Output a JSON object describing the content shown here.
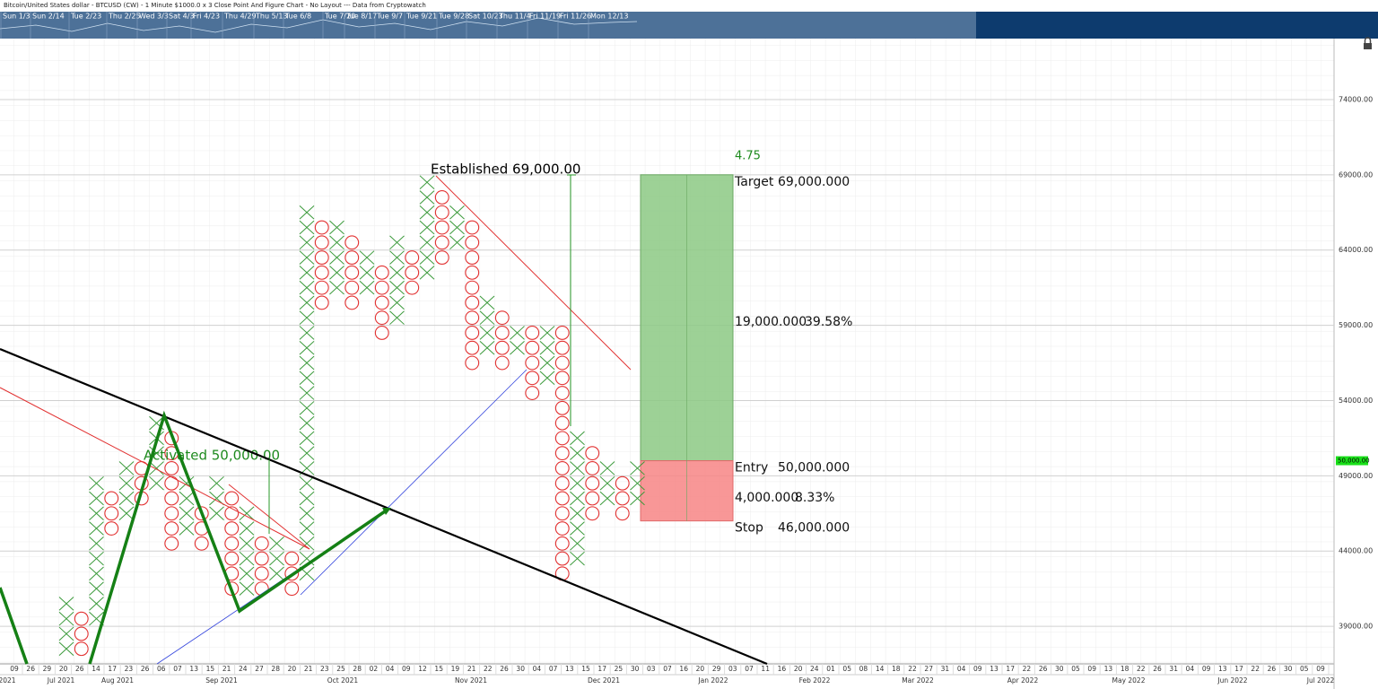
{
  "chart_data": {
    "type": "pnf",
    "title": "Bitcoin/United States dollar - BTCUSD (CW) - 1 Minute $1000.0 x 3 Close Point And Figure Chart - No Layout --- Data from Cryptowatch",
    "box_size": 1000,
    "ylim": [
      36500,
      78050
    ],
    "yticks": [
      {
        "value": 39000,
        "label": "39000.00"
      },
      {
        "value": 44000,
        "label": "44000.00"
      },
      {
        "value": 49000,
        "label": "49000.00"
      },
      {
        "value": 54000,
        "label": "54000.00"
      },
      {
        "value": 59000,
        "label": "59000.00"
      },
      {
        "value": 64000,
        "label": "64000.00"
      },
      {
        "value": 69000,
        "label": "69000.00"
      },
      {
        "value": 74000,
        "label": "74000.00"
      }
    ],
    "grid": true,
    "x_color": "#3a9a3a",
    "o_color": "#e23232",
    "columns": [
      {
        "kind": "X",
        "low": 37000,
        "high": 41000
      },
      {
        "kind": "O",
        "low": 37000,
        "high": 40000
      },
      {
        "kind": "X",
        "low": 39000,
        "high": 49000
      },
      {
        "kind": "O",
        "low": 45000,
        "high": 48000
      },
      {
        "kind": "X",
        "low": 46000,
        "high": 50000
      },
      {
        "kind": "O",
        "low": 47000,
        "high": 50000
      },
      {
        "kind": "X",
        "low": 48000,
        "high": 53000
      },
      {
        "kind": "O",
        "low": 44000,
        "high": 52000
      },
      {
        "kind": "X",
        "low": 45000,
        "high": 49000
      },
      {
        "kind": "O",
        "low": 44000,
        "high": 47000
      },
      {
        "kind": "X",
        "low": 46000,
        "high": 49000
      },
      {
        "kind": "O",
        "low": 41000,
        "high": 48000
      },
      {
        "kind": "X",
        "low": 41000,
        "high": 47000
      },
      {
        "kind": "O",
        "low": 41000,
        "high": 45000
      },
      {
        "kind": "X",
        "low": 42000,
        "high": 45000
      },
      {
        "kind": "O",
        "low": 41000,
        "high": 44000
      },
      {
        "kind": "X",
        "low": 42000,
        "high": 67000
      },
      {
        "kind": "O",
        "low": 60000,
        "high": 66000
      },
      {
        "kind": "X",
        "low": 61000,
        "high": 66000
      },
      {
        "kind": "O",
        "low": 60000,
        "high": 65000
      },
      {
        "kind": "X",
        "low": 61000,
        "high": 64000
      },
      {
        "kind": "O",
        "low": 58000,
        "high": 63000
      },
      {
        "kind": "X",
        "low": 59000,
        "high": 65000
      },
      {
        "kind": "O",
        "low": 61000,
        "high": 64000
      },
      {
        "kind": "X",
        "low": 62000,
        "high": 69000
      },
      {
        "kind": "O",
        "low": 63000,
        "high": 68000
      },
      {
        "kind": "X",
        "low": 64000,
        "high": 67000
      },
      {
        "kind": "O",
        "low": 56000,
        "high": 66000
      },
      {
        "kind": "X",
        "low": 57000,
        "high": 61000
      },
      {
        "kind": "O",
        "low": 56000,
        "high": 60000
      },
      {
        "kind": "X",
        "low": 57000,
        "high": 59000
      },
      {
        "kind": "O",
        "low": 54000,
        "high": 59000
      },
      {
        "kind": "X",
        "low": 55000,
        "high": 59000
      },
      {
        "kind": "O",
        "low": 42000,
        "high": 59000
      },
      {
        "kind": "X",
        "low": 43000,
        "high": 52000
      },
      {
        "kind": "O",
        "low": 46000,
        "high": 51000
      },
      {
        "kind": "X",
        "low": 47000,
        "high": 50000
      },
      {
        "kind": "O",
        "low": 46000,
        "high": 49000
      },
      {
        "kind": "X",
        "low": 47000,
        "high": 50000
      }
    ],
    "navigator_dates": [
      "Sun 1/3",
      "Sun 2/14",
      "Tue 2/23",
      "Thu 2/25",
      "Wed 3/3",
      "Sat 4/3",
      "Fri 4/23",
      "Thu 4/29",
      "Thu 5/13",
      "Tue 6/8",
      "Tue 7/20",
      "Tue 8/17",
      "Tue 9/7",
      "Tue 9/21",
      "Tue 9/28",
      "Sat 10/23",
      "Thu 11/4",
      "Fri 11/19",
      "Fri 11/26",
      "Mon 12/13"
    ],
    "x_day_labels": [
      "09",
      "26",
      "29",
      "20",
      "26",
      "14",
      "17",
      "23",
      "26",
      "06",
      "07",
      "13",
      "15",
      "21",
      "24",
      "27",
      "28",
      "20",
      "21",
      "23",
      "25",
      "28",
      "02",
      "04",
      "09",
      "12",
      "15",
      "19",
      "21",
      "22",
      "26",
      "30",
      "04",
      "07",
      "13",
      "15",
      "17",
      "25",
      "30",
      "03",
      "07",
      "16",
      "20",
      "29",
      "03",
      "07",
      "11",
      "16",
      "20",
      "24",
      "01",
      "05",
      "08",
      "14",
      "18",
      "22",
      "27",
      "31",
      "04",
      "09",
      "13",
      "17",
      "22",
      "26",
      "30",
      "05",
      "09",
      "13",
      "18",
      "22",
      "26",
      "31",
      "04",
      "09",
      "13",
      "17",
      "22",
      "26",
      "30",
      "05",
      "09"
    ],
    "x_month_labels": [
      "2021",
      "Jul 2021",
      "Aug 2021",
      "Sep 2021",
      "Oct 2021",
      "Nov 2021",
      "Dec 2021",
      "Jan 2022",
      "Feb 2022",
      "Mar 2022",
      "Apr 2022",
      "May 2022",
      "Jun 2022",
      "Jul 2022"
    ],
    "annotations": [
      "Established 69,000.00",
      "Activated 50,000.00"
    ],
    "position": {
      "ratio": "4.75",
      "target": {
        "label": "Target",
        "value": 69000,
        "value_label": "69,000.000"
      },
      "reward": {
        "value_label": "19,000.000",
        "percent": "39.58%"
      },
      "entry": {
        "label": "Entry",
        "value": 50000,
        "value_label": "50,000.000"
      },
      "risk": {
        "value_label": "4,000.000",
        "percent": "8.33%"
      },
      "stop": {
        "label": "Stop",
        "value": 46000,
        "value_label": "46,000.000"
      }
    },
    "last_price": {
      "value": 50000,
      "label": "50,000.00"
    }
  }
}
